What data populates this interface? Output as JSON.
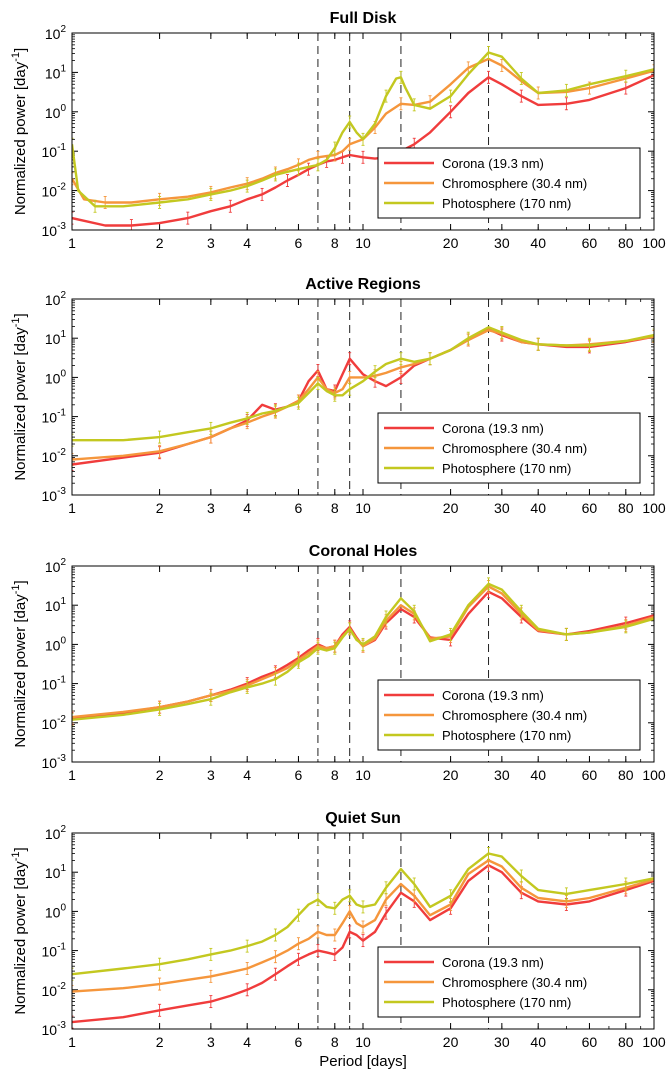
{
  "chart_data": [
    {
      "type": "line",
      "title": "Full Disk",
      "xlabel": "",
      "ylabel": "Normalized power [day",
      "ylabel_sup": "-1",
      "ylabel_end": "]",
      "xscale": "log",
      "yscale": "log",
      "xlim": [
        1,
        100
      ],
      "ylim": [
        0.001,
        100
      ],
      "xticks": [
        1,
        2,
        3,
        4,
        6,
        8,
        10,
        20,
        30,
        40,
        60,
        80,
        100
      ],
      "xtick_labels": [
        "1",
        "2",
        "3",
        "4",
        "6",
        "8",
        "10",
        "20",
        "30",
        "40",
        "60",
        "80",
        "100"
      ],
      "ytick_exponents": [
        -3,
        -2,
        -1,
        0,
        1,
        2
      ],
      "ytick_base": "10",
      "vlines": [
        7,
        9,
        13.5,
        27
      ],
      "legend_position": "lower-right",
      "series": [
        {
          "name": "Corona (19.3 nm)",
          "color": "#f03c3c",
          "x": [
            1,
            1.3,
            1.6,
            2,
            2.5,
            3,
            3.5,
            4,
            4.5,
            5,
            5.5,
            6,
            6.5,
            7,
            7.5,
            8,
            8.5,
            9,
            10,
            11,
            12,
            13.5,
            15,
            17,
            20,
            23,
            27,
            30,
            35,
            40,
            50,
            60,
            80,
            100
          ],
          "y": [
            0.002,
            0.0013,
            0.0013,
            0.0015,
            0.002,
            0.003,
            0.004,
            0.006,
            0.008,
            0.012,
            0.018,
            0.025,
            0.035,
            0.045,
            0.055,
            0.06,
            0.07,
            0.08,
            0.07,
            0.065,
            0.07,
            0.1,
            0.15,
            0.3,
            1,
            3,
            7.5,
            5,
            2.5,
            1.5,
            1.6,
            2,
            4,
            8.5
          ]
        },
        {
          "name": "Chromosphere (30.4 nm)",
          "color": "#f5963c",
          "x": [
            1,
            1.1,
            1.3,
            1.6,
            2,
            2.5,
            3,
            3.5,
            4,
            4.5,
            5,
            5.5,
            6,
            6.5,
            7,
            7.5,
            8,
            8.5,
            9,
            10,
            11,
            12,
            13.5,
            15,
            17,
            20,
            23,
            27,
            30,
            35,
            40,
            50,
            60,
            80,
            100
          ],
          "y": [
            0.02,
            0.006,
            0.005,
            0.005,
            0.006,
            0.007,
            0.009,
            0.012,
            0.015,
            0.02,
            0.028,
            0.035,
            0.045,
            0.06,
            0.07,
            0.075,
            0.08,
            0.1,
            0.15,
            0.2,
            0.4,
            0.9,
            1.6,
            1.5,
            1.8,
            5,
            13,
            22,
            15,
            6,
            3,
            3.2,
            4,
            7,
            11
          ]
        },
        {
          "name": "Photosphere (170 nm)",
          "color": "#c3c820",
          "x": [
            1,
            1.05,
            1.2,
            1.5,
            2,
            2.5,
            3,
            3.5,
            4,
            4.5,
            5,
            5.5,
            6,
            6.5,
            7,
            7.5,
            8,
            8.5,
            9,
            9.5,
            10,
            11,
            12,
            13,
            13.5,
            14,
            15,
            17,
            20,
            23,
            27,
            30,
            35,
            40,
            50,
            60,
            80,
            100
          ],
          "y": [
            0.15,
            0.01,
            0.004,
            0.004,
            0.005,
            0.006,
            0.008,
            0.01,
            0.013,
            0.018,
            0.025,
            0.03,
            0.035,
            0.04,
            0.045,
            0.06,
            0.12,
            0.3,
            0.55,
            0.3,
            0.2,
            0.5,
            2.5,
            7,
            7.5,
            4,
            1.5,
            1.2,
            2.5,
            9,
            32,
            25,
            7,
            3,
            3.5,
            5,
            8,
            12
          ]
        }
      ]
    },
    {
      "type": "line",
      "title": "Active Regions",
      "xlabel": "",
      "ylabel": "Normalized power [day",
      "ylabel_sup": "-1",
      "ylabel_end": "]",
      "xscale": "log",
      "yscale": "log",
      "xlim": [
        1,
        100
      ],
      "ylim": [
        0.001,
        100
      ],
      "xticks": [
        1,
        2,
        3,
        4,
        6,
        8,
        10,
        20,
        30,
        40,
        60,
        80,
        100
      ],
      "xtick_labels": [
        "1",
        "2",
        "3",
        "4",
        "6",
        "8",
        "10",
        "20",
        "30",
        "40",
        "60",
        "80",
        "100"
      ],
      "ytick_exponents": [
        -3,
        -2,
        -1,
        0,
        1,
        2
      ],
      "ytick_base": "10",
      "vlines": [
        7,
        9,
        13.5,
        27
      ],
      "legend_position": "lower-right",
      "series": [
        {
          "name": "Corona (19.3 nm)",
          "color": "#f03c3c",
          "x": [
            1,
            1.5,
            2,
            2.5,
            3,
            3.5,
            4,
            4.5,
            5,
            5.5,
            6,
            6.5,
            7,
            7.5,
            8,
            8.5,
            9,
            10,
            11,
            12,
            13.5,
            15,
            17,
            20,
            23,
            27,
            30,
            35,
            40,
            50,
            60,
            80,
            100
          ],
          "y": [
            0.006,
            0.009,
            0.012,
            0.02,
            0.03,
            0.05,
            0.08,
            0.2,
            0.15,
            0.18,
            0.25,
            0.8,
            1.5,
            0.5,
            0.45,
            1.2,
            3,
            1.2,
            0.8,
            0.6,
            1.0,
            2,
            3,
            5,
            9,
            17,
            12,
            8,
            7,
            6,
            6,
            8,
            11
          ]
        },
        {
          "name": "Chromosphere (30.4 nm)",
          "color": "#f5963c",
          "x": [
            1,
            1.5,
            2,
            2.5,
            3,
            3.5,
            4,
            4.5,
            5,
            5.5,
            6,
            6.5,
            7,
            7.5,
            8,
            8.5,
            9,
            10,
            11,
            12,
            13.5,
            15,
            17,
            20,
            23,
            27,
            30,
            35,
            40,
            50,
            60,
            80,
            100
          ],
          "y": [
            0.008,
            0.01,
            0.013,
            0.02,
            0.03,
            0.05,
            0.07,
            0.1,
            0.13,
            0.18,
            0.25,
            0.5,
            1.0,
            0.5,
            0.4,
            0.5,
            1.0,
            1.0,
            1.1,
            1.3,
            1.8,
            2.2,
            3,
            5,
            9,
            16,
            13,
            8,
            7,
            6.5,
            7,
            8.5,
            11
          ]
        },
        {
          "name": "Photosphere (170 nm)",
          "color": "#c3c820",
          "x": [
            1,
            1.5,
            2,
            2.5,
            3,
            3.5,
            4,
            4.5,
            5,
            5.5,
            6,
            6.5,
            7,
            7.5,
            8,
            8.5,
            9,
            10,
            11,
            12,
            13.5,
            15,
            17,
            20,
            23,
            27,
            30,
            35,
            40,
            50,
            60,
            80,
            100
          ],
          "y": [
            0.025,
            0.025,
            0.03,
            0.04,
            0.05,
            0.07,
            0.09,
            0.12,
            0.14,
            0.18,
            0.22,
            0.4,
            0.7,
            0.45,
            0.35,
            0.35,
            0.5,
            0.8,
            1.4,
            2.2,
            3,
            2.5,
            3,
            5,
            10,
            19,
            14,
            9,
            7,
            6.5,
            6.5,
            8.5,
            12
          ]
        }
      ]
    },
    {
      "type": "line",
      "title": "Coronal Holes",
      "xlabel": "",
      "ylabel": "Normalized power [day",
      "ylabel_sup": "-1",
      "ylabel_end": "]",
      "xscale": "log",
      "yscale": "log",
      "xlim": [
        1,
        100
      ],
      "ylim": [
        0.001,
        100
      ],
      "xticks": [
        1,
        2,
        3,
        4,
        6,
        8,
        10,
        20,
        30,
        40,
        60,
        80,
        100
      ],
      "xtick_labels": [
        "1",
        "2",
        "3",
        "4",
        "6",
        "8",
        "10",
        "20",
        "30",
        "40",
        "60",
        "80",
        "100"
      ],
      "ytick_exponents": [
        -3,
        -2,
        -1,
        0,
        1,
        2
      ],
      "ytick_base": "10",
      "vlines": [
        7,
        9,
        13.5,
        27
      ],
      "legend_position": "lower-right",
      "series": [
        {
          "name": "Corona (19.3 nm)",
          "color": "#f03c3c",
          "x": [
            1,
            1.5,
            2,
            2.5,
            3,
            3.5,
            4,
            4.5,
            5,
            5.5,
            6,
            6.5,
            7,
            7.5,
            8,
            8.5,
            9,
            9.5,
            10,
            11,
            12,
            13.5,
            15,
            17,
            20,
            23,
            27,
            30,
            35,
            40,
            50,
            60,
            80,
            100
          ],
          "y": [
            0.013,
            0.018,
            0.025,
            0.035,
            0.05,
            0.07,
            0.1,
            0.15,
            0.2,
            0.3,
            0.45,
            0.7,
            1.0,
            0.8,
            0.9,
            1.8,
            2.8,
            1.5,
            0.9,
            1.3,
            3.5,
            8,
            5,
            1.5,
            1.3,
            6,
            22,
            15,
            5,
            2.2,
            1.8,
            2.2,
            3.5,
            5.5
          ]
        },
        {
          "name": "Chromosphere (30.4 nm)",
          "color": "#f5963c",
          "x": [
            1,
            1.5,
            2,
            2.5,
            3,
            3.5,
            4,
            4.5,
            5,
            5.5,
            6,
            6.5,
            7,
            7.5,
            8,
            8.5,
            9,
            9.5,
            10,
            11,
            12,
            13.5,
            15,
            17,
            20,
            23,
            27,
            30,
            35,
            40,
            50,
            60,
            80,
            100
          ],
          "y": [
            0.014,
            0.019,
            0.025,
            0.035,
            0.05,
            0.065,
            0.09,
            0.13,
            0.18,
            0.25,
            0.4,
            0.6,
            0.9,
            0.8,
            0.9,
            1.6,
            2.5,
            1.4,
            0.9,
            1.4,
            4,
            10,
            6,
            1.4,
            1.6,
            9,
            30,
            20,
            6,
            2.3,
            1.8,
            2,
            3,
            5
          ]
        },
        {
          "name": "Photosphere (170 nm)",
          "color": "#c3c820",
          "x": [
            1,
            1.5,
            2,
            2.5,
            3,
            3.5,
            4,
            4.5,
            5,
            5.5,
            6,
            6.5,
            7,
            7.5,
            8,
            8.5,
            9,
            9.5,
            10,
            11,
            12,
            13.5,
            15,
            17,
            20,
            23,
            27,
            30,
            35,
            40,
            50,
            60,
            80,
            100
          ],
          "y": [
            0.012,
            0.016,
            0.022,
            0.03,
            0.04,
            0.06,
            0.08,
            0.1,
            0.13,
            0.2,
            0.35,
            0.5,
            0.8,
            0.7,
            0.8,
            1.5,
            2.5,
            1.3,
            1.0,
            1.6,
            5,
            15,
            7,
            1.2,
            1.8,
            10,
            35,
            25,
            7,
            2.5,
            1.8,
            2,
            2.8,
            4.5
          ]
        }
      ]
    },
    {
      "type": "line",
      "title": "Quiet Sun",
      "xlabel": "Period [days]",
      "ylabel": "Normalized power [day",
      "ylabel_sup": "-1",
      "ylabel_end": "]",
      "xscale": "log",
      "yscale": "log",
      "xlim": [
        1,
        100
      ],
      "ylim": [
        0.001,
        100
      ],
      "xticks": [
        1,
        2,
        3,
        4,
        6,
        8,
        10,
        20,
        30,
        40,
        60,
        80,
        100
      ],
      "xtick_labels": [
        "1",
        "2",
        "3",
        "4",
        "6",
        "8",
        "10",
        "20",
        "30",
        "40",
        "60",
        "80",
        "100"
      ],
      "ytick_exponents": [
        -3,
        -2,
        -1,
        0,
        1,
        2
      ],
      "ytick_base": "10",
      "vlines": [
        7,
        9,
        13.5,
        27
      ],
      "legend_position": "lower-right",
      "series": [
        {
          "name": "Corona (19.3 nm)",
          "color": "#f03c3c",
          "x": [
            1,
            1.5,
            2,
            2.5,
            3,
            3.5,
            4,
            4.5,
            5,
            5.5,
            6,
            6.5,
            7,
            7.5,
            8,
            8.5,
            9,
            9.5,
            10,
            11,
            12,
            13.5,
            15,
            17,
            20,
            23,
            27,
            30,
            35,
            40,
            50,
            60,
            80,
            100
          ],
          "y": [
            0.0015,
            0.002,
            0.003,
            0.004,
            0.005,
            0.007,
            0.01,
            0.015,
            0.025,
            0.04,
            0.06,
            0.08,
            0.1,
            0.09,
            0.08,
            0.12,
            0.3,
            0.25,
            0.18,
            0.3,
            0.9,
            3,
            1.8,
            0.6,
            1.2,
            6,
            15,
            10,
            3,
            1.8,
            1.5,
            1.8,
            3.5,
            6
          ]
        },
        {
          "name": "Chromosphere (30.4 nm)",
          "color": "#f5963c",
          "x": [
            1,
            1.5,
            2,
            2.5,
            3,
            3.5,
            4,
            4.5,
            5,
            5.5,
            6,
            6.5,
            7,
            7.5,
            8,
            8.5,
            9,
            9.5,
            10,
            11,
            12,
            13.5,
            15,
            17,
            20,
            23,
            27,
            30,
            35,
            40,
            50,
            60,
            80,
            100
          ],
          "y": [
            0.009,
            0.011,
            0.014,
            0.018,
            0.022,
            0.028,
            0.035,
            0.05,
            0.07,
            0.1,
            0.15,
            0.2,
            0.3,
            0.25,
            0.25,
            0.5,
            1.0,
            0.5,
            0.4,
            0.6,
            2,
            5,
            2.5,
            0.8,
            1.5,
            9,
            20,
            14,
            4,
            2.2,
            1.8,
            2.2,
            4,
            6.5
          ]
        },
        {
          "name": "Photosphere (170 nm)",
          "color": "#c3c820",
          "x": [
            1,
            1.5,
            2,
            2.5,
            3,
            3.5,
            4,
            4.5,
            5,
            5.5,
            6,
            6.5,
            7,
            7.5,
            8,
            8.5,
            9,
            9.5,
            10,
            11,
            12,
            13.5,
            15,
            17,
            20,
            23,
            27,
            30,
            35,
            40,
            50,
            60,
            80,
            100
          ],
          "y": [
            0.025,
            0.035,
            0.045,
            0.06,
            0.08,
            0.1,
            0.13,
            0.17,
            0.25,
            0.4,
            0.8,
            1.5,
            2.0,
            1.3,
            1.2,
            2.0,
            2.5,
            1.5,
            1.3,
            1.5,
            4,
            12,
            5,
            1.3,
            2.5,
            12,
            30,
            25,
            8,
            3.5,
            2.8,
            3.5,
            5,
            7
          ]
        }
      ]
    }
  ]
}
